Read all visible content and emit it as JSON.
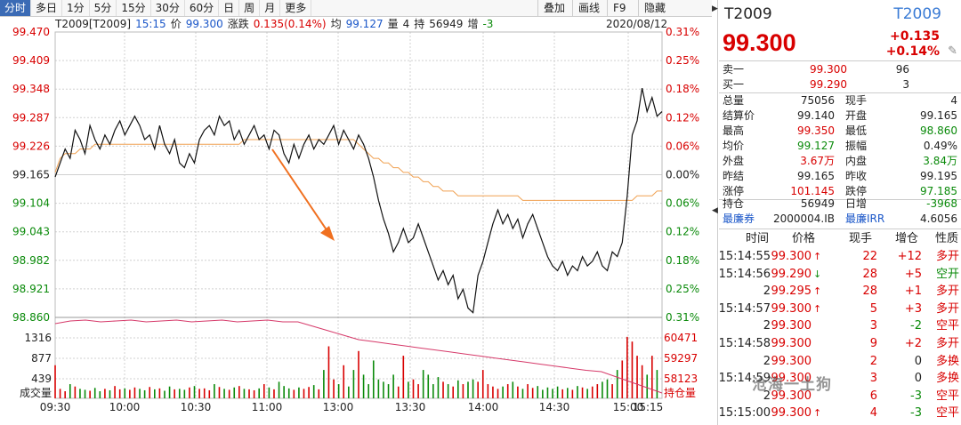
{
  "toolbar": {
    "tabs": [
      "分时",
      "多日",
      "1分",
      "5分",
      "15分",
      "30分",
      "60分",
      "日",
      "周",
      "月",
      "更多"
    ],
    "right_buttons": [
      "叠加",
      "画线",
      "F9",
      "隐藏"
    ]
  },
  "info": {
    "code": "T2009[T2009]",
    "time": "15:15",
    "price_label": "价",
    "price": "99.300",
    "change_label": "涨跌",
    "change": "0.135(0.14%)",
    "avg_label": "均",
    "avg": "99.127",
    "vol_label": "量",
    "vol": "4",
    "oi_label": "持",
    "oi": "56949",
    "inc_label": "增",
    "inc": "-3",
    "date": "2020/08/12"
  },
  "chart_data": {
    "type": "line",
    "y_ticks_left": [
      "99.470",
      "99.409",
      "99.348",
      "99.287",
      "99.226",
      "99.165",
      "99.104",
      "99.043",
      "98.982",
      "98.921",
      "98.860"
    ],
    "y_ticks_right": [
      "0.31%",
      "0.25%",
      "0.18%",
      "0.12%",
      "0.06%",
      "0.00%",
      "0.06%",
      "0.12%",
      "0.18%",
      "0.25%",
      "0.31%"
    ],
    "x_ticks": [
      "09:30",
      "10:00",
      "10:30",
      "11:00",
      "13:00",
      "13:30",
      "14:00",
      "14:30",
      "15:00",
      "15:15"
    ],
    "ylim": [
      98.86,
      99.47
    ],
    "prev_settle": 99.165,
    "price": [
      99.16,
      99.19,
      99.22,
      99.2,
      99.26,
      99.24,
      99.21,
      99.27,
      99.24,
      99.22,
      99.25,
      99.23,
      99.26,
      99.28,
      99.25,
      99.27,
      99.29,
      99.27,
      99.24,
      99.25,
      99.22,
      99.27,
      99.23,
      99.21,
      99.24,
      99.19,
      99.18,
      99.21,
      99.19,
      99.24,
      99.26,
      99.27,
      99.25,
      99.29,
      99.27,
      99.28,
      99.24,
      99.26,
      99.23,
      99.25,
      99.27,
      99.24,
      99.25,
      99.22,
      99.26,
      99.25,
      99.21,
      99.19,
      99.23,
      99.2,
      99.23,
      99.25,
      99.22,
      99.24,
      99.23,
      99.25,
      99.27,
      99.23,
      99.26,
      99.24,
      99.22,
      99.25,
      99.23,
      99.2,
      99.16,
      99.11,
      99.07,
      99.04,
      99.0,
      99.02,
      99.05,
      99.02,
      99.03,
      99.06,
      99.03,
      99.0,
      98.97,
      98.94,
      98.96,
      98.93,
      98.95,
      98.9,
      98.92,
      98.88,
      98.87,
      98.95,
      98.98,
      99.02,
      99.06,
      99.09,
      99.06,
      99.08,
      99.05,
      99.07,
      99.03,
      99.06,
      99.08,
      99.05,
      99.02,
      98.99,
      98.97,
      98.96,
      98.98,
      98.95,
      98.97,
      98.96,
      98.99,
      98.97,
      98.98,
      99.0,
      98.97,
      98.96,
      99.0,
      98.99,
      99.02,
      99.12,
      99.25,
      99.28,
      99.35,
      99.3,
      99.33,
      99.29,
      99.3
    ],
    "avg_price": [
      99.17,
      99.2,
      99.21,
      99.21,
      99.21,
      99.22,
      99.22,
      99.22,
      99.23,
      99.23,
      99.23,
      99.23,
      99.23,
      99.23,
      99.23,
      99.23,
      99.23,
      99.23,
      99.23,
      99.23,
      99.23,
      99.23,
      99.23,
      99.23,
      99.23,
      99.23,
      99.23,
      99.23,
      99.23,
      99.23,
      99.23,
      99.23,
      99.23,
      99.23,
      99.23,
      99.23,
      99.23,
      99.23,
      99.24,
      99.24,
      99.24,
      99.24,
      99.24,
      99.24,
      99.24,
      99.24,
      99.24,
      99.24,
      99.24,
      99.24,
      99.24,
      99.24,
      99.24,
      99.24,
      99.24,
      99.24,
      99.24,
      99.24,
      99.24,
      99.24,
      99.24,
      99.23,
      99.22,
      99.21,
      99.2,
      99.2,
      99.19,
      99.19,
      99.18,
      99.18,
      99.17,
      99.17,
      99.16,
      99.16,
      99.15,
      99.15,
      99.14,
      99.14,
      99.13,
      99.13,
      99.13,
      99.12,
      99.12,
      99.12,
      99.12,
      99.12,
      99.12,
      99.12,
      99.12,
      99.12,
      99.12,
      99.12,
      99.12,
      99.12,
      99.11,
      99.11,
      99.11,
      99.11,
      99.11,
      99.11,
      99.11,
      99.11,
      99.11,
      99.11,
      99.11,
      99.11,
      99.11,
      99.11,
      99.11,
      99.11,
      99.11,
      99.11,
      99.11,
      99.11,
      99.11,
      99.11,
      99.11,
      99.12,
      99.12,
      99.12,
      99.12,
      99.13,
      99.13
    ],
    "volume": [
      700,
      200,
      150,
      300,
      250,
      200,
      180,
      160,
      220,
      150,
      200,
      170,
      260,
      190,
      210,
      180,
      230,
      200,
      170,
      240,
      190,
      210,
      160,
      250,
      190,
      200,
      180,
      230,
      260,
      200,
      210,
      170,
      300,
      240,
      200,
      180,
      230,
      260,
      200,
      190,
      170,
      210,
      300,
      230,
      190,
      350,
      260,
      210,
      180,
      230,
      200,
      240,
      280,
      190,
      600,
      1100,
      400,
      300,
      700,
      250,
      600,
      1000,
      500,
      300,
      800,
      400,
      350,
      300,
      500,
      250,
      900,
      350,
      400,
      300,
      600,
      500,
      300,
      450,
      350,
      300,
      250,
      380,
      300,
      350,
      400,
      350,
      600,
      300,
      250,
      200,
      250,
      300,
      350,
      250,
      200,
      300,
      220,
      260,
      180,
      230,
      200,
      250,
      190,
      220,
      180,
      260,
      230,
      200,
      250,
      300,
      350,
      400,
      300,
      600,
      800,
      1300,
      1200,
      900,
      700,
      500,
      900,
      600
    ],
    "volume_ticks_left": [
      "1316",
      "877",
      "439"
    ],
    "volume_ticks_right": [
      "60471",
      "59297",
      "58123"
    ],
    "volume_label": "成交量",
    "oi_label": "持仓量",
    "annotation": "arrow"
  },
  "panel": {
    "code": "T2009",
    "code2": "T2009",
    "price": "99.300",
    "change": "+0.135",
    "change_pct": "+0.14%",
    "sell1_label": "卖一",
    "sell1_price": "99.300",
    "sell1_vol": "96",
    "buy1_label": "买一",
    "buy1_price": "99.290",
    "buy1_vol": "3",
    "stats": [
      {
        "l1": "总量",
        "v1": "75056",
        "c1": "#222",
        "l2": "现手",
        "v2": "4",
        "c2": "#222"
      },
      {
        "l1": "结算价",
        "v1": "99.140",
        "c1": "#222",
        "l2": "开盘",
        "v2": "99.165",
        "c2": "#222"
      },
      {
        "l1": "最高",
        "v1": "99.350",
        "c1": "#d80000",
        "l2": "最低",
        "v2": "98.860",
        "c2": "#0a8a0a"
      },
      {
        "l1": "均价",
        "v1": "99.127",
        "c1": "#0a8a0a",
        "l2": "振幅",
        "v2": "0.49%",
        "c2": "#222"
      },
      {
        "l1": "外盘",
        "v1": "3.67万",
        "c1": "#d80000",
        "l2": "内盘",
        "v2": "3.84万",
        "c2": "#0a8a0a"
      },
      {
        "l1": "昨结",
        "v1": "99.165",
        "c1": "#222",
        "l2": "昨收",
        "v2": "99.195",
        "c2": "#222"
      },
      {
        "l1": "涨停",
        "v1": "101.145",
        "c1": "#d80000",
        "l2": "跌停",
        "v2": "97.185",
        "c2": "#0a8a0a"
      }
    ],
    "oi_label": "持仓",
    "oi_value": "56949",
    "oi_chg_label": "日增",
    "oi_chg": "-3968",
    "ctd_label": "最廉券",
    "ctd_value": "2000004.IB",
    "irr_label": "最廉IRR",
    "irr_value": "4.6056",
    "trade_headers": [
      "时间",
      "价格",
      "现手",
      "增仓",
      "性质"
    ],
    "trades": [
      {
        "time": "15:14:55",
        "price": "99.300",
        "dir": "up",
        "vol": "22",
        "inc": "+12",
        "nature": "多开",
        "pc": "#d80000",
        "ic": "#d80000",
        "nc": "#d80000"
      },
      {
        "time": "15:14:56",
        "price": "99.290",
        "dir": "down",
        "vol": "28",
        "inc": "+5",
        "nature": "空开",
        "pc": "#d80000",
        "ic": "#d80000",
        "nc": "#0a8a0a"
      },
      {
        "time": "2",
        "price": "99.295",
        "dir": "up",
        "vol": "28",
        "inc": "+1",
        "nature": "多开",
        "pc": "#d80000",
        "ic": "#d80000",
        "nc": "#d80000"
      },
      {
        "time": "15:14:57",
        "price": "99.300",
        "dir": "up",
        "vol": "5",
        "inc": "+3",
        "nature": "多开",
        "pc": "#d80000",
        "ic": "#d80000",
        "nc": "#d80000"
      },
      {
        "time": "2",
        "price": "99.300",
        "dir": "",
        "vol": "3",
        "inc": "-2",
        "nature": "空平",
        "pc": "#d80000",
        "ic": "#0a8a0a",
        "nc": "#d80000"
      },
      {
        "time": "15:14:58",
        "price": "99.300",
        "dir": "",
        "vol": "9",
        "inc": "+2",
        "nature": "多开",
        "pc": "#d80000",
        "ic": "#d80000",
        "nc": "#d80000"
      },
      {
        "time": "2",
        "price": "99.300",
        "dir": "",
        "vol": "2",
        "inc": "0",
        "nature": "多换",
        "pc": "#d80000",
        "ic": "#222",
        "nc": "#d80000"
      },
      {
        "time": "15:14:59",
        "price": "99.300",
        "dir": "",
        "vol": "3",
        "inc": "0",
        "nature": "多换",
        "pc": "#d80000",
        "ic": "#222",
        "nc": "#d80000"
      },
      {
        "time": "2",
        "price": "99.300",
        "dir": "",
        "vol": "6",
        "inc": "-3",
        "nature": "空平",
        "pc": "#d80000",
        "ic": "#0a8a0a",
        "nc": "#d80000"
      },
      {
        "time": "15:15:00",
        "price": "99.300",
        "dir": "up",
        "vol": "4",
        "inc": "-3",
        "nature": "空平",
        "pc": "#d80000",
        "ic": "#0a8a0a",
        "nc": "#d80000"
      }
    ],
    "watermark": "沧海一土狗"
  }
}
